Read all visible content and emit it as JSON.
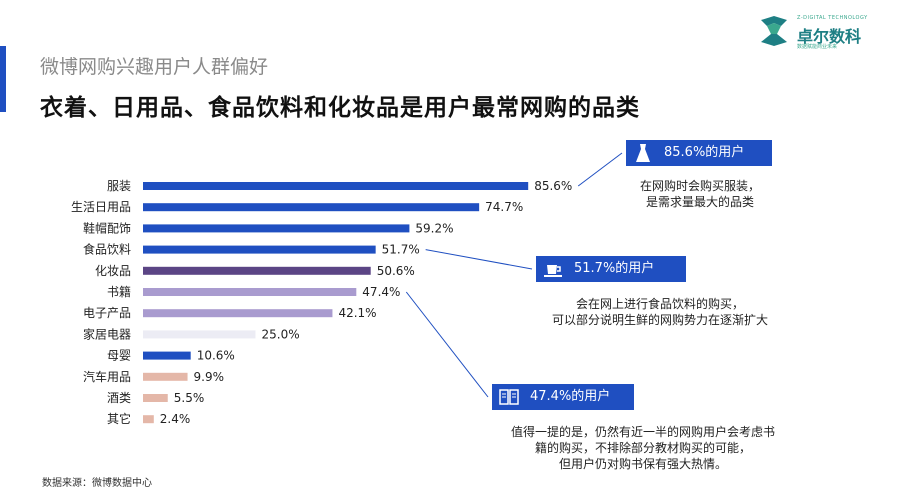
{
  "subtitle": "微博网购兴趣用户人群偏好",
  "title": "衣着、日用品、食品饮料和化妆品是用户最常网购的品类",
  "logo": {
    "tagline": "Z-DIGITAL TECHNOLOGY",
    "name": "卓尔数科",
    "sub": "数据赋能商业未来"
  },
  "chart_data": {
    "type": "bar",
    "orientation": "horizontal",
    "categories": [
      "服装",
      "生活日用品",
      "鞋帽配饰",
      "食品饮料",
      "化妆品",
      "书籍",
      "电子产品",
      "家居电器",
      "母婴",
      "汽车用品",
      "酒类",
      "其它"
    ],
    "values": [
      85.6,
      74.7,
      59.2,
      51.7,
      50.6,
      47.4,
      42.1,
      25.0,
      10.6,
      9.9,
      5.5,
      2.4
    ],
    "value_labels": [
      "85.6%",
      "74.7%",
      "59.2%",
      "51.7%",
      "50.6%",
      "47.4%",
      "42.1%",
      "25.0%",
      "10.6%",
      "9.9%",
      "5.5%",
      "2.4%"
    ],
    "colors": [
      "#1f4fc1",
      "#1f4fc1",
      "#1f4fc1",
      "#1f4fc1",
      "#5b4585",
      "#a99bcf",
      "#a99bcf",
      "#ececf4",
      "#1f4fc1",
      "#e4b7a8",
      "#e4b7a8",
      "#e4b7a8"
    ],
    "xlim": [
      0,
      100
    ],
    "grid": false,
    "legend": "none"
  },
  "callouts": [
    {
      "icon": "dress-icon",
      "header": "85.6%的用户",
      "text": [
        "在网购时会购买服装，",
        "是需求量最大的品类"
      ]
    },
    {
      "icon": "cup-icon",
      "header": "51.7%的用户",
      "text": [
        "会在网上进行食品饮料的购买，",
        "可以部分说明生鲜的网购势力在逐渐扩大"
      ]
    },
    {
      "icon": "book-icon",
      "header": "47.4%的用户",
      "text": [
        "值得一提的是，仍然有近一半的网购用户会考虑书",
        "籍的购买，不排除部分教材购买的可能，",
        "但用户仍对购书保有强大热情。"
      ]
    }
  ],
  "source": "数据来源：微博数据中心"
}
